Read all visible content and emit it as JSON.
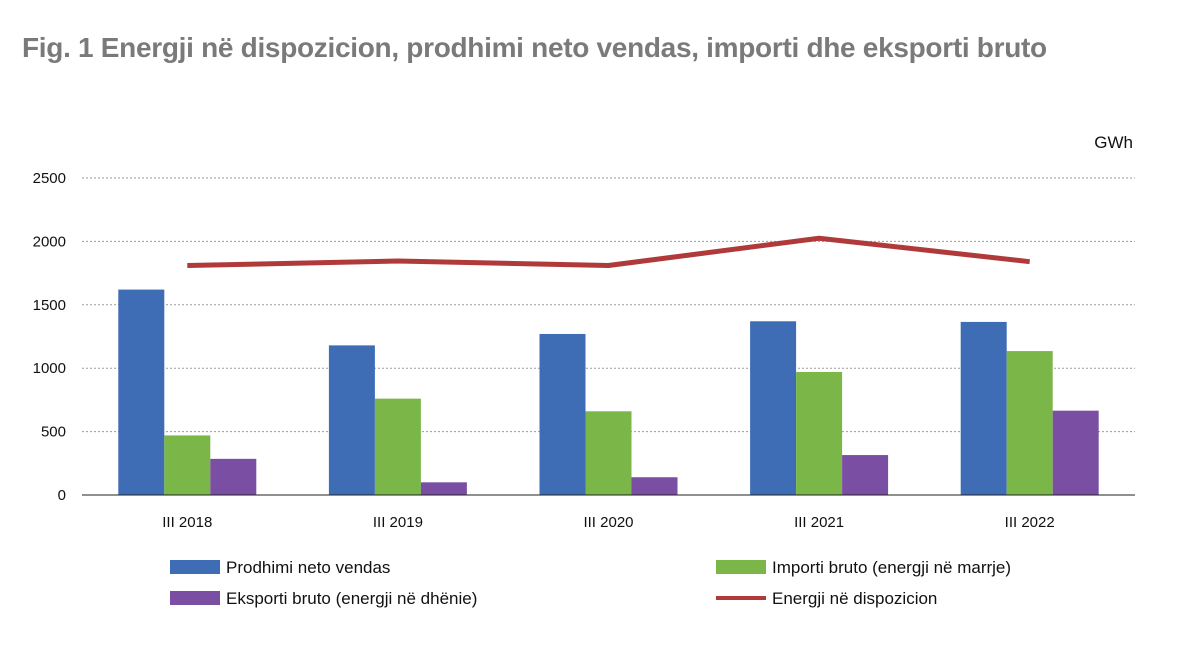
{
  "title": "Fig. 1 Energji në dispozicion, prodhimi neto vendas, importi dhe eksporti bruto",
  "chart_data": {
    "type": "bar",
    "unit": "GWh",
    "categories": [
      "III 2018",
      "III 2019",
      "III 2020",
      "III 2021",
      "III 2022"
    ],
    "ylim": [
      0,
      2500
    ],
    "yticks": [
      0,
      500,
      1000,
      1500,
      2000,
      2500
    ],
    "grid": true,
    "legend_position": "bottom",
    "series": [
      {
        "name": "Prodhimi neto vendas",
        "kind": "bar",
        "color": "#3e6db5",
        "values": [
          1620,
          1180,
          1270,
          1370,
          1365
        ]
      },
      {
        "name": "Importi bruto (energji në marrje)",
        "kind": "bar",
        "color": "#7ab648",
        "values": [
          470,
          760,
          660,
          970,
          1135
        ]
      },
      {
        "name": "Eksporti bruto (energji në dhënie)",
        "kind": "bar",
        "color": "#7a4fa3",
        "values": [
          285,
          100,
          140,
          315,
          665
        ]
      },
      {
        "name": "Energji në dispozicion",
        "kind": "line",
        "color": "#b03a3a",
        "values": [
          1810,
          1845,
          1810,
          2025,
          1840
        ]
      }
    ]
  }
}
